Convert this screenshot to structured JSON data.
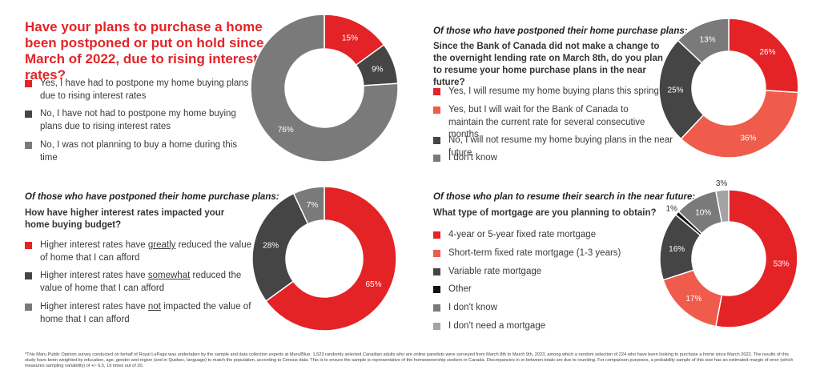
{
  "colors": {
    "red": "#e42327",
    "salmon": "#ef5c4b",
    "dark_gray": "#454545",
    "gray": "#7a7a7a",
    "light_gray": "#a3a3a3",
    "black": "#111111"
  },
  "q1": {
    "title": "Have your plans to purchase a home been postponed or put on hold since March of 2022, due to rising interest rates?",
    "legend": [
      "Yes, I have had to postpone my home buying plans due to rising interest rates",
      "No, I have not had to postpone my home buying plans due to rising interest rates",
      "No, I was not planning to buy a home during this time"
    ]
  },
  "q2": {
    "subhead": "Of those who have postponed their home purchase plans:",
    "question": "Since the Bank of Canada did not make a change to the overnight lending rate on March 8th, do you plan to resume your home purchase plans in the near future?",
    "legend": [
      "Yes, I will resume my home buying plans this spring",
      "Yes, but I will wait for the Bank of Canada to maintain the current rate for several consecutive months",
      "No, I will not resume my home buying plans in the near future",
      "I don't know"
    ]
  },
  "q3": {
    "subhead": "Of those who have postponed their home purchase plans:",
    "question": "How have higher interest rates impacted your home buying budget?",
    "legend": [
      {
        "before": "Higher interest rates have ",
        "emph": "greatly",
        "after": " reduced the value of home that I can afford"
      },
      {
        "before": "Higher interest rates have ",
        "emph": "somewhat",
        "after": " reduced the value of home that I can afford"
      },
      {
        "before": "Higher interest rates have ",
        "emph": "not",
        "after": " impacted the value of home that I can afford"
      }
    ]
  },
  "q4": {
    "subhead": "Of those who plan to resume their search in the near future:",
    "question": "What type of mortgage are you planning to obtain?",
    "legend": [
      "4-year or 5-year fixed rate mortgage",
      "Short-term fixed rate mortgage (1-3 years)",
      "Variable rate mortgage",
      "Other",
      "I don't know",
      "I don't need a mortgage"
    ]
  },
  "footnote": "*This Maru Public Opinion survey conducted on behalf of Royal LePage was undertaken by the sample and data collection experts at Maru/Blue. 1,523 randomly selected Canadian adults who are online panelists were surveyed from March 8th to March 9th, 2023, among which a random selection of 224 who have been looking to purchase a home since March 2022. The results of this study have been weighted by education, age, gender and region (and in Quebec, language) to match the population, according to Census data. This is to ensure the sample is representative of the homeownership seekers in Canada. Discrepancies in or between totals are due to rounding. For comparison purposes, a probability sample of this size has an estimated margin of error (which measures sampling variability) of +/- 6.5, 19 times out of 20.",
  "chart_data": [
    {
      "type": "pie",
      "title": "Have your plans to purchase a home been postponed or put on hold since March of 2022, due to rising interest rates?",
      "categories": [
        "Yes, I have had to postpone my home buying plans due to rising interest rates",
        "No, I have not had to postpone my home buying plans due to rising interest rates",
        "No, I was not planning to buy a home during this time"
      ],
      "values": [
        15,
        9,
        76
      ],
      "labels": [
        "15%",
        "9%",
        "76%"
      ],
      "colors": [
        "#e42327",
        "#454545",
        "#7a7a7a"
      ]
    },
    {
      "type": "pie",
      "title": "Since the Bank of Canada did not make a change to the overnight lending rate on March 8th, do you plan to resume your home purchase plans in the near future?",
      "categories": [
        "Yes, I will resume my home buying plans this spring",
        "Yes, but I will wait for the Bank of Canada to maintain the current rate for several consecutive months",
        "No, I will not resume my home buying plans in the near future",
        "I don't know"
      ],
      "values": [
        26,
        36,
        25,
        13
      ],
      "labels": [
        "26%",
        "36%",
        "25%",
        "13%"
      ],
      "colors": [
        "#e42327",
        "#ef5c4b",
        "#454545",
        "#7a7a7a"
      ]
    },
    {
      "type": "pie",
      "title": "How have higher interest rates impacted your home buying budget?",
      "categories": [
        "Higher interest rates have greatly reduced the value of home that I can afford",
        "Higher interest rates have somewhat reduced the value of home that I can afford",
        "Higher interest rates have not impacted the value of home that I can afford"
      ],
      "values": [
        65,
        28,
        7
      ],
      "labels": [
        "65%",
        "28%",
        "7%"
      ],
      "colors": [
        "#e42327",
        "#454545",
        "#7a7a7a"
      ]
    },
    {
      "type": "pie",
      "title": "What type of mortgage are you planning to obtain?",
      "categories": [
        "4-year or 5-year fixed rate mortgage",
        "Short-term fixed rate mortgage (1-3 years)",
        "Variable rate mortgage",
        "Other",
        "I don't know",
        "I don't need a mortgage"
      ],
      "values": [
        53,
        17,
        16,
        1,
        10,
        3
      ],
      "labels": [
        "53%",
        "17%",
        "16%",
        "1%",
        "10%",
        "3%"
      ],
      "colors": [
        "#e42327",
        "#ef5c4b",
        "#454545",
        "#111111",
        "#7a7a7a",
        "#a3a3a3"
      ]
    }
  ]
}
